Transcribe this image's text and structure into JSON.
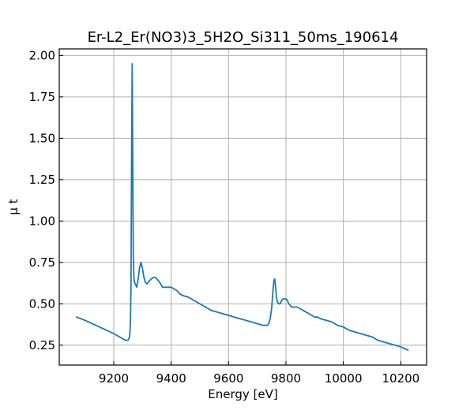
{
  "chart_data": {
    "type": "line",
    "title": "Er-L2_Er(NO3)3_5H2O_Si311_50ms_190614",
    "xlabel": "Energy [eV]",
    "ylabel": "μ t",
    "xlim": [
      9010,
      10290
    ],
    "ylim": [
      0.13,
      2.04
    ],
    "xticks": [
      9200,
      9400,
      9600,
      9800,
      10000,
      10200
    ],
    "yticks": [
      0.25,
      0.5,
      0.75,
      1.0,
      1.25,
      1.5,
      1.75,
      2.0
    ],
    "xtick_labels": [
      "9200",
      "9400",
      "9600",
      "9800",
      "10000",
      "10200"
    ],
    "ytick_labels": [
      "0.25",
      "0.50",
      "0.75",
      "1.00",
      "1.25",
      "1.50",
      "1.75",
      "2.00"
    ],
    "grid": true,
    "series": [
      {
        "color": "#1f77b4",
        "x": [
          9070,
          9100,
          9150,
          9200,
          9230,
          9240,
          9250,
          9255,
          9258,
          9260,
          9262,
          9264,
          9266,
          9268,
          9270,
          9272,
          9275,
          9280,
          9285,
          9290,
          9295,
          9300,
          9305,
          9310,
          9315,
          9320,
          9330,
          9340,
          9345,
          9350,
          9360,
          9370,
          9380,
          9390,
          9400,
          9410,
          9420,
          9430,
          9440,
          9460,
          9480,
          9500,
          9520,
          9540,
          9560,
          9580,
          9600,
          9620,
          9640,
          9660,
          9680,
          9700,
          9720,
          9735,
          9740,
          9745,
          9750,
          9755,
          9758,
          9761,
          9764,
          9767,
          9770,
          9775,
          9780,
          9785,
          9790,
          9795,
          9800,
          9805,
          9810,
          9815,
          9820,
          9830,
          9840,
          9850,
          9860,
          9870,
          9880,
          9890,
          9900,
          9910,
          9920,
          9940,
          9960,
          9980,
          10000,
          10020,
          10040,
          10060,
          10080,
          10100,
          10120,
          10140,
          10160,
          10180,
          10200,
          10225
        ],
        "y": [
          0.42,
          0.4,
          0.36,
          0.32,
          0.29,
          0.28,
          0.28,
          0.3,
          0.38,
          0.6,
          1.3,
          1.95,
          1.4,
          0.8,
          0.66,
          0.63,
          0.62,
          0.6,
          0.65,
          0.72,
          0.75,
          0.71,
          0.66,
          0.63,
          0.62,
          0.63,
          0.65,
          0.66,
          0.66,
          0.65,
          0.63,
          0.6,
          0.6,
          0.6,
          0.6,
          0.59,
          0.58,
          0.56,
          0.55,
          0.54,
          0.52,
          0.5,
          0.48,
          0.46,
          0.45,
          0.44,
          0.43,
          0.42,
          0.41,
          0.4,
          0.39,
          0.38,
          0.37,
          0.37,
          0.38,
          0.41,
          0.47,
          0.58,
          0.64,
          0.65,
          0.6,
          0.54,
          0.51,
          0.5,
          0.5,
          0.52,
          0.53,
          0.53,
          0.53,
          0.52,
          0.5,
          0.49,
          0.48,
          0.48,
          0.48,
          0.47,
          0.46,
          0.45,
          0.44,
          0.43,
          0.42,
          0.42,
          0.41,
          0.4,
          0.39,
          0.37,
          0.36,
          0.34,
          0.33,
          0.32,
          0.31,
          0.3,
          0.28,
          0.27,
          0.26,
          0.25,
          0.24,
          0.22
        ]
      }
    ]
  }
}
